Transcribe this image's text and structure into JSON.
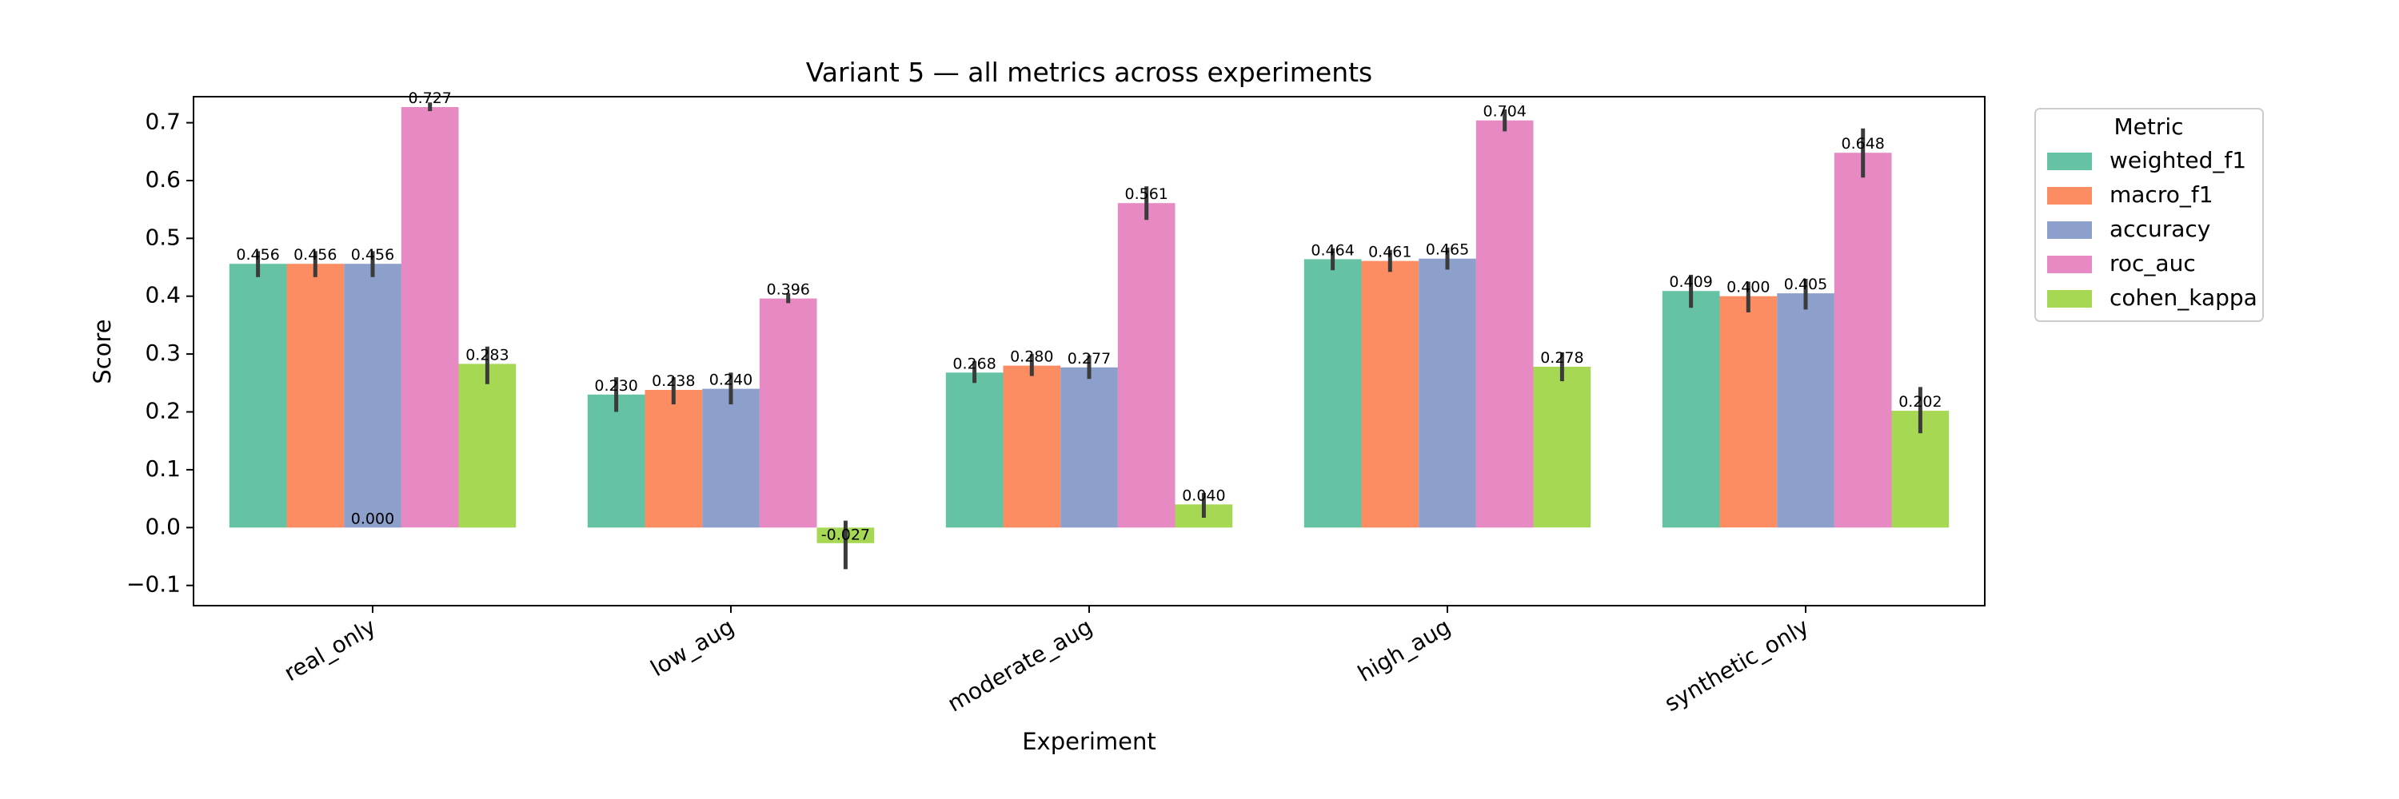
{
  "chart_data": {
    "type": "bar",
    "title": "Variant 5 — all metrics across experiments",
    "xlabel": "Experiment",
    "ylabel": "Score",
    "ylim": [
      -0.135,
      0.745
    ],
    "yticks": [
      -0.1,
      0.0,
      0.1,
      0.2,
      0.3,
      0.4,
      0.5,
      0.6,
      0.7
    ],
    "ytick_labels": [
      "−0.1",
      "0.0",
      "0.1",
      "0.2",
      "0.3",
      "0.4",
      "0.5",
      "0.6",
      "0.7"
    ],
    "categories": [
      "real_only",
      "low_aug",
      "moderate_aug",
      "high_aug",
      "synthetic_only"
    ],
    "legend": {
      "title": "Metric",
      "position": "outside-right"
    },
    "grid": false,
    "series": [
      {
        "name": "weighted_f1",
        "color": "#66c2a5",
        "values": [
          0.456,
          0.23,
          0.268,
          0.464,
          0.409
        ],
        "labels": [
          "0.456",
          "0.230",
          "0.268",
          "0.464",
          "0.409"
        ],
        "err_low": [
          0.433,
          0.2,
          0.25,
          0.445,
          0.38
        ],
        "err_high": [
          0.478,
          0.26,
          0.288,
          0.483,
          0.437
        ]
      },
      {
        "name": "macro_f1",
        "color": "#fc8d62",
        "values": [
          0.456,
          0.238,
          0.28,
          0.461,
          0.4
        ],
        "labels": [
          "0.456",
          "0.238",
          "0.280",
          "0.461",
          "0.400"
        ],
        "err_low": [
          0.433,
          0.213,
          0.262,
          0.442,
          0.372
        ],
        "err_high": [
          0.478,
          0.26,
          0.3,
          0.48,
          0.425
        ]
      },
      {
        "name": "accuracy",
        "color": "#8da0cb",
        "values": [
          0.456,
          0.24,
          0.277,
          0.465,
          0.405
        ],
        "labels": [
          "0.456",
          "0.240",
          "0.277",
          "0.465",
          "0.405"
        ],
        "err_low": [
          0.433,
          0.213,
          0.257,
          0.446,
          0.377
        ],
        "err_high": [
          0.478,
          0.268,
          0.298,
          0.484,
          0.43
        ]
      },
      {
        "name": "roc_auc",
        "color": "#e78ac3",
        "values": [
          0.727,
          0.396,
          0.561,
          0.704,
          0.648
        ],
        "labels": [
          "0.727",
          "0.396",
          "0.561",
          "0.704",
          "0.648"
        ],
        "err_low": [
          0.72,
          0.388,
          0.532,
          0.685,
          0.605
        ],
        "err_high": [
          0.735,
          0.405,
          0.59,
          0.723,
          0.69
        ]
      },
      {
        "name": "cohen_kappa",
        "color": "#a6d854",
        "values": [
          0.283,
          -0.027,
          0.04,
          0.278,
          0.202
        ],
        "labels": [
          "0.283",
          "-0.027",
          "0.040",
          "0.278",
          "0.202"
        ],
        "err_low": [
          0.248,
          -0.072,
          0.017,
          0.253,
          0.163
        ],
        "err_high": [
          0.313,
          0.012,
          0.06,
          0.303,
          0.243
        ]
      }
    ],
    "annotations": [
      {
        "text": "0.000",
        "category": "real_only",
        "series": "accuracy",
        "value": 0.0
      }
    ]
  }
}
